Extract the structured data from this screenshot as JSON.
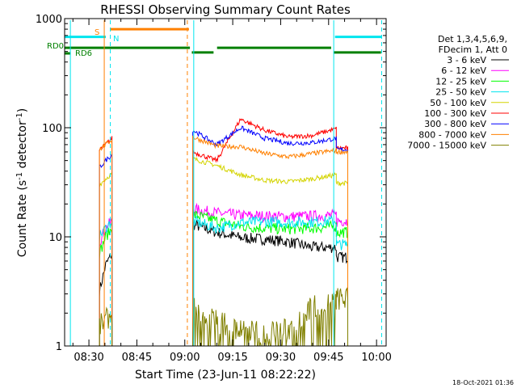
{
  "chart_data": {
    "type": "line",
    "title": "RHESSI Observing Summary Count Rates",
    "xlabel": "Start Time (23-Jun-11 08:22:22)",
    "ylabel": "Count Rate (s",
    "ylabel_sup": "-1",
    "ylabel_tail": " detector",
    "ylabel_end": ")",
    "yscale": "log",
    "ylim": [
      1,
      1000
    ],
    "xlim_minutes": [
      22.4,
      123
    ],
    "x_tick_labels": [
      "08:30",
      "08:45",
      "09:00",
      "09:15",
      "09:30",
      "09:45",
      "10:00"
    ],
    "x_ticks_minutes": [
      30,
      45,
      60,
      75,
      90,
      105,
      120
    ],
    "y_tick_labels": [
      "1",
      "10",
      "100",
      "1000"
    ],
    "y_ticks": [
      1,
      10,
      100,
      1000
    ],
    "legend_header": [
      "Det 1,3,4,5,6,9,",
      "FDecim 1, Att 0"
    ],
    "series": [
      {
        "name": "3 - 6 keV",
        "color": "#000000",
        "seg1": [
          3.2,
          5.5,
          7
        ],
        "seg2": [
          13,
          11,
          9.8,
          9.5,
          9.0,
          8.0,
          8.0
        ],
        "end": 6.5
      },
      {
        "name": "6 - 12 keV",
        "color": "#ff00ff",
        "seg1": [
          9,
          12,
          14
        ],
        "seg2": [
          18,
          16.5,
          15.7,
          15.5,
          15.3,
          15.5,
          15.8
        ],
        "end": 14
      },
      {
        "name": "12 - 25 keV",
        "color": "#00ff00",
        "seg1": [
          7,
          10,
          12
        ],
        "seg2": [
          16,
          14,
          12.5,
          12,
          11.8,
          12,
          12.5
        ],
        "end": 11
      },
      {
        "name": "25 - 50 keV",
        "color": "#00e5ee",
        "seg1": [
          10,
          12,
          14
        ],
        "seg2": [
          14,
          12,
          13.5,
          13.8,
          13.5,
          13.7,
          14
        ],
        "end": 8.5
      },
      {
        "name": "50 - 100 keV",
        "color": "#d4d400",
        "seg1": [
          30,
          34,
          38
        ],
        "seg2": [
          52,
          45,
          37,
          33,
          32,
          34,
          37
        ],
        "end": 31
      },
      {
        "name": "100 - 300 keV",
        "color": "#ff0000",
        "seg1": [
          62,
          70,
          80
        ],
        "seg2": [
          60,
          50,
          120,
          95,
          82,
          85,
          98
        ],
        "end": 65
      },
      {
        "name": "300 - 800 keV",
        "color": "#0000ff",
        "seg1": [
          43,
          50,
          57
        ],
        "seg2": [
          95,
          70,
          100,
          80,
          72,
          73,
          80
        ],
        "end": 63
      },
      {
        "name": "800 - 7000 keV",
        "color": "#ff8000",
        "seg1": [
          63,
          70,
          78
        ],
        "seg2": [
          82,
          68,
          67,
          58,
          54,
          58,
          62
        ],
        "end": 60
      },
      {
        "name": "7000 - 15000 keV",
        "color": "#808000",
        "seg1": [
          1.5,
          1.7,
          2.0
        ],
        "seg2": [
          2.2,
          1.7,
          1.4,
          1.35,
          1.4,
          2.3,
          2.6
        ],
        "end": 2.7
      }
    ],
    "flags": [
      {
        "label": "S",
        "color": "#ff8000",
        "level": 800,
        "segments": [
          [
            36.8,
            61.3
          ]
        ]
      },
      {
        "label": "N",
        "color": "#00e5ee",
        "level": 680,
        "segments": [
          [
            22.4,
            35.3
          ],
          [
            107,
            121.5
          ]
        ]
      },
      {
        "label": "RD0",
        "color": "#008000",
        "level": 540,
        "segments": [
          [
            22.4,
            61.6
          ],
          [
            62.2,
            69.0
          ],
          [
            70.1,
            105.8
          ],
          [
            106.6,
            121.4
          ]
        ],
        "lower_level": 490,
        "lower_segments": [
          [
            62.2,
            69.0
          ],
          [
            106.6,
            121.4
          ]
        ]
      },
      {
        "label": "RD6",
        "color": "#008000",
        "level": 480,
        "segments": [
          [
            22.4,
            24.2
          ]
        ]
      }
    ],
    "vlines": [
      {
        "x": 24.2,
        "color": "#00e5ee",
        "style": "solid"
      },
      {
        "x": 34.8,
        "color": "#ff8000",
        "style": "solid"
      },
      {
        "x": 36.7,
        "color": "#00e5ee",
        "style": "dash"
      },
      {
        "x": 60.8,
        "color": "#ff8000",
        "style": "dash"
      },
      {
        "x": 62.8,
        "color": "#00e5ee",
        "style": "solid"
      },
      {
        "x": 106.6,
        "color": "#00e5ee",
        "style": "solid"
      },
      {
        "x": 121.6,
        "color": "#00e5ee",
        "style": "dash"
      }
    ],
    "segments_time": {
      "seg1": [
        33.3,
        37.2
      ],
      "seg2": [
        62.5,
        107.4
      ],
      "seg3": [
        107.4,
        111.0
      ]
    }
  },
  "timestamp": "18-Oct-2021 01:36"
}
